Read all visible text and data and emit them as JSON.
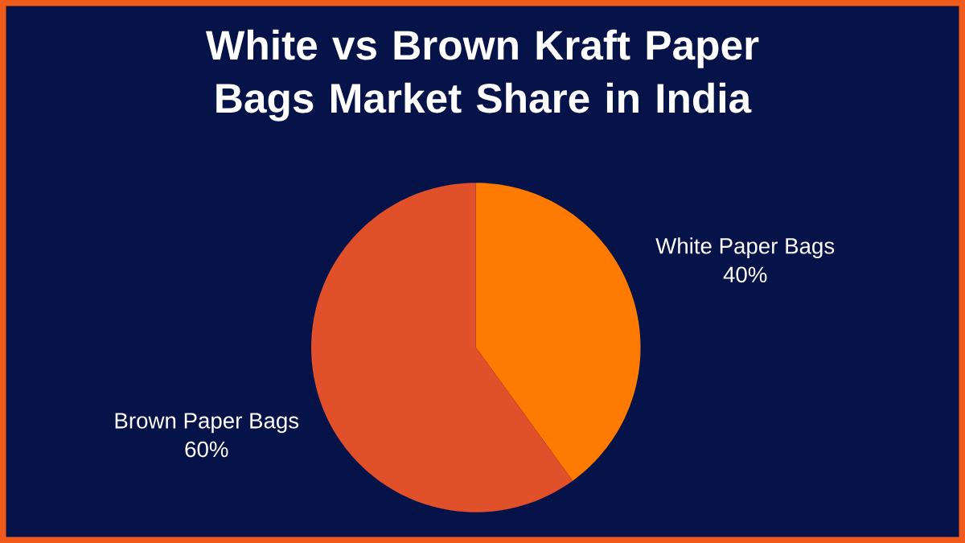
{
  "chart_data": {
    "type": "pie",
    "title": "White vs Brown Kraft Paper Bags Market Share in India",
    "categories": [
      "White Paper Bags",
      "Brown Paper Bags"
    ],
    "values": [
      40,
      60
    ],
    "colors": [
      "#ff7a00",
      "#e0502b"
    ],
    "value_labels": [
      "40%",
      "60%"
    ]
  }
}
